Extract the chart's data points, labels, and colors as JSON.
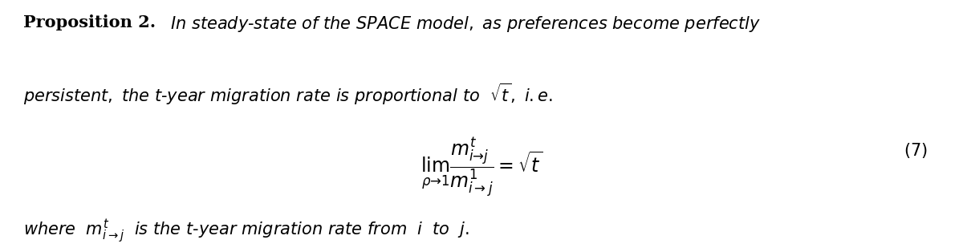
{
  "figsize": [
    12.0,
    3.14
  ],
  "dpi": 100,
  "background_color": "#ffffff",
  "text_color": "#000000",
  "font_size_main": 15,
  "font_size_eq": 17,
  "font_size_num": 15
}
